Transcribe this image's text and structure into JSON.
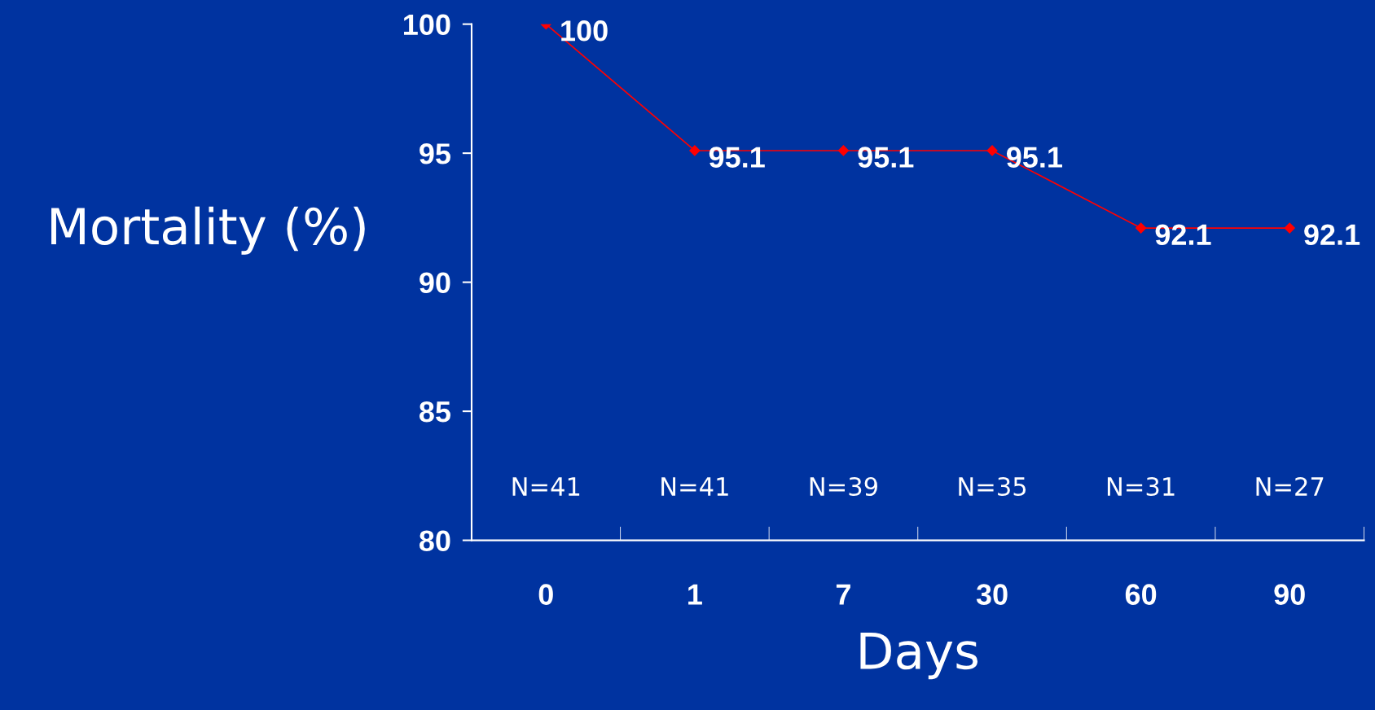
{
  "chart_data": {
    "type": "line",
    "xlabel": "Days",
    "ylabel": "Mortality (%)",
    "categories": [
      "0",
      "1",
      "7",
      "30",
      "60",
      "90"
    ],
    "series": [
      {
        "color": "#ff0000",
        "values": [
          100,
          95.1,
          95.1,
          95.1,
          92.1,
          92.1
        ]
      }
    ],
    "ylim": [
      80,
      100
    ],
    "yticks": [
      80,
      85,
      90,
      95,
      100
    ],
    "data_labels": true,
    "marker": "diamond",
    "line_style": "solid",
    "grid": false,
    "legend": false,
    "annotations": [
      "N=41",
      "N=41",
      "N=39",
      "N=35",
      "N=31",
      "N=27"
    ]
  }
}
